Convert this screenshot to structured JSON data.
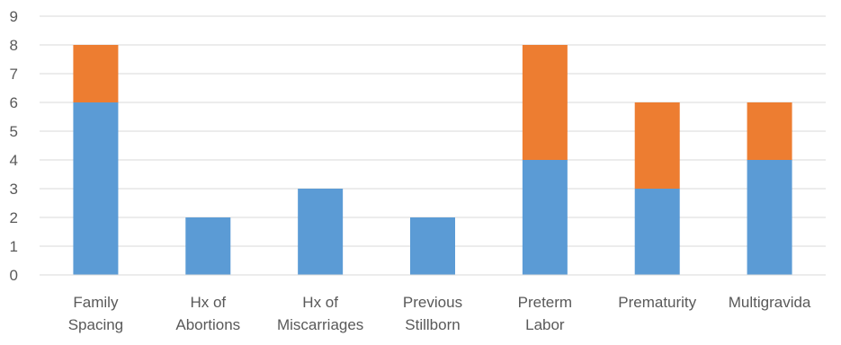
{
  "chart_data": {
    "type": "bar",
    "stacked": true,
    "categories": [
      [
        "Family",
        "Spacing"
      ],
      [
        "Hx of",
        "Abortions"
      ],
      [
        "Hx of",
        "Miscarriages"
      ],
      [
        "Previous",
        "Stillborn"
      ],
      [
        "Preterm",
        "Labor"
      ],
      [
        "Prematurity"
      ],
      [
        "Multigravida"
      ]
    ],
    "series": [
      {
        "color": "#5b9bd5",
        "values": [
          6,
          2,
          3,
          2,
          4,
          3,
          4
        ]
      },
      {
        "color": "#ed7d31",
        "values": [
          2,
          0,
          0,
          0,
          4,
          3,
          2
        ]
      }
    ],
    "ylim": [
      0,
      9
    ],
    "yticks": [
      0,
      1,
      2,
      3,
      4,
      5,
      6,
      7,
      8,
      9
    ],
    "grid": true,
    "legend": "none"
  }
}
